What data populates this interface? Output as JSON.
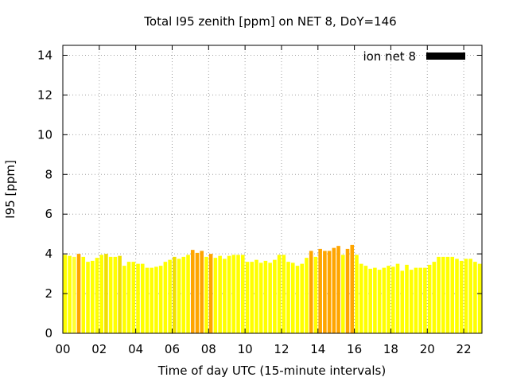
{
  "chart_data": {
    "type": "bar",
    "title": "Total I95 zenith [ppm] on NET 8, DoY=146",
    "xlabel": "Time of day UTC (15-minute intervals)",
    "ylabel": "I95 [ppm]",
    "xlim": [
      0,
      23
    ],
    "ylim": [
      0,
      14.5
    ],
    "grid": true,
    "legend_position": "top-right",
    "x_ticks": [
      {
        "value": 0,
        "label": "00"
      },
      {
        "value": 2,
        "label": "02"
      },
      {
        "value": 4,
        "label": "04"
      },
      {
        "value": 6,
        "label": "06"
      },
      {
        "value": 8,
        "label": "08"
      },
      {
        "value": 10,
        "label": "10"
      },
      {
        "value": 12,
        "label": "12"
      },
      {
        "value": 14,
        "label": "14"
      },
      {
        "value": 16,
        "label": "16"
      },
      {
        "value": 18,
        "label": "18"
      },
      {
        "value": 20,
        "label": "20"
      },
      {
        "value": 22,
        "label": "22"
      }
    ],
    "y_ticks": [
      {
        "value": 0,
        "label": "0"
      },
      {
        "value": 2,
        "label": "2"
      },
      {
        "value": 4,
        "label": "4"
      },
      {
        "value": 6,
        "label": "6"
      },
      {
        "value": 8,
        "label": "8"
      },
      {
        "value": 10,
        "label": "10"
      },
      {
        "value": 12,
        "label": "12"
      },
      {
        "value": 14,
        "label": "14"
      }
    ],
    "series": [
      {
        "name": "ion net 8",
        "legend_color": "#000000",
        "bar_width_hours": 0.2,
        "colors": {
          "normal": "#ffff00",
          "low": "#ffff33",
          "elevated": "#ffa500",
          "mid": "#f0e000"
        },
        "points": [
          {
            "x": 0.125,
            "y": 3.95,
            "level": "normal"
          },
          {
            "x": 0.375,
            "y": 3.9,
            "level": "normal"
          },
          {
            "x": 0.625,
            "y": 3.85,
            "level": "low"
          },
          {
            "x": 0.875,
            "y": 4.0,
            "level": "elevated"
          },
          {
            "x": 1.125,
            "y": 3.85,
            "level": "normal"
          },
          {
            "x": 1.375,
            "y": 3.6,
            "level": "normal"
          },
          {
            "x": 1.625,
            "y": 3.65,
            "level": "normal"
          },
          {
            "x": 1.875,
            "y": 3.8,
            "level": "normal"
          },
          {
            "x": 2.125,
            "y": 3.95,
            "level": "normal"
          },
          {
            "x": 2.375,
            "y": 4.0,
            "level": "mid"
          },
          {
            "x": 2.625,
            "y": 3.85,
            "level": "normal"
          },
          {
            "x": 2.875,
            "y": 3.85,
            "level": "normal"
          },
          {
            "x": 3.125,
            "y": 3.9,
            "level": "mid"
          },
          {
            "x": 3.375,
            "y": 3.4,
            "level": "normal"
          },
          {
            "x": 3.625,
            "y": 3.6,
            "level": "normal"
          },
          {
            "x": 3.875,
            "y": 3.6,
            "level": "normal"
          },
          {
            "x": 4.125,
            "y": 3.5,
            "level": "normal"
          },
          {
            "x": 4.375,
            "y": 3.5,
            "level": "normal"
          },
          {
            "x": 4.625,
            "y": 3.3,
            "level": "normal"
          },
          {
            "x": 4.875,
            "y": 3.3,
            "level": "normal"
          },
          {
            "x": 5.125,
            "y": 3.35,
            "level": "normal"
          },
          {
            "x": 5.375,
            "y": 3.4,
            "level": "normal"
          },
          {
            "x": 5.625,
            "y": 3.6,
            "level": "normal"
          },
          {
            "x": 5.875,
            "y": 3.7,
            "level": "normal"
          },
          {
            "x": 6.125,
            "y": 3.85,
            "level": "mid"
          },
          {
            "x": 6.375,
            "y": 3.75,
            "level": "normal"
          },
          {
            "x": 6.625,
            "y": 3.85,
            "level": "normal"
          },
          {
            "x": 6.875,
            "y": 3.95,
            "level": "normal"
          },
          {
            "x": 7.125,
            "y": 4.2,
            "level": "elevated"
          },
          {
            "x": 7.375,
            "y": 4.05,
            "level": "elevated"
          },
          {
            "x": 7.625,
            "y": 4.15,
            "level": "elevated"
          },
          {
            "x": 7.875,
            "y": 3.85,
            "level": "normal"
          },
          {
            "x": 8.125,
            "y": 4.0,
            "level": "elevated"
          },
          {
            "x": 8.375,
            "y": 3.8,
            "level": "normal"
          },
          {
            "x": 8.625,
            "y": 3.9,
            "level": "normal"
          },
          {
            "x": 8.875,
            "y": 3.75,
            "level": "normal"
          },
          {
            "x": 9.125,
            "y": 3.9,
            "level": "normal"
          },
          {
            "x": 9.375,
            "y": 3.95,
            "level": "normal"
          },
          {
            "x": 9.625,
            "y": 3.95,
            "level": "normal"
          },
          {
            "x": 9.875,
            "y": 3.95,
            "level": "normal"
          },
          {
            "x": 10.125,
            "y": 3.6,
            "level": "normal"
          },
          {
            "x": 10.375,
            "y": 3.6,
            "level": "normal"
          },
          {
            "x": 10.625,
            "y": 3.7,
            "level": "normal"
          },
          {
            "x": 10.875,
            "y": 3.55,
            "level": "normal"
          },
          {
            "x": 11.125,
            "y": 3.65,
            "level": "normal"
          },
          {
            "x": 11.375,
            "y": 3.55,
            "level": "normal"
          },
          {
            "x": 11.625,
            "y": 3.7,
            "level": "normal"
          },
          {
            "x": 11.875,
            "y": 3.95,
            "level": "normal"
          },
          {
            "x": 12.125,
            "y": 3.95,
            "level": "normal"
          },
          {
            "x": 12.375,
            "y": 3.6,
            "level": "normal"
          },
          {
            "x": 12.625,
            "y": 3.55,
            "level": "normal"
          },
          {
            "x": 12.875,
            "y": 3.4,
            "level": "normal"
          },
          {
            "x": 13.125,
            "y": 3.5,
            "level": "normal"
          },
          {
            "x": 13.375,
            "y": 3.8,
            "level": "normal"
          },
          {
            "x": 13.625,
            "y": 4.15,
            "level": "elevated"
          },
          {
            "x": 13.875,
            "y": 3.85,
            "level": "normal"
          },
          {
            "x": 14.125,
            "y": 4.25,
            "level": "elevated"
          },
          {
            "x": 14.375,
            "y": 4.15,
            "level": "elevated"
          },
          {
            "x": 14.625,
            "y": 4.15,
            "level": "elevated"
          },
          {
            "x": 14.875,
            "y": 4.3,
            "level": "elevated"
          },
          {
            "x": 15.125,
            "y": 4.4,
            "level": "elevated"
          },
          {
            "x": 15.375,
            "y": 3.95,
            "level": "normal"
          },
          {
            "x": 15.625,
            "y": 4.25,
            "level": "elevated"
          },
          {
            "x": 15.875,
            "y": 4.45,
            "level": "elevated"
          },
          {
            "x": 16.125,
            "y": 3.95,
            "level": "normal"
          },
          {
            "x": 16.375,
            "y": 3.5,
            "level": "normal"
          },
          {
            "x": 16.625,
            "y": 3.4,
            "level": "normal"
          },
          {
            "x": 16.875,
            "y": 3.25,
            "level": "normal"
          },
          {
            "x": 17.125,
            "y": 3.3,
            "level": "normal"
          },
          {
            "x": 17.375,
            "y": 3.2,
            "level": "normal"
          },
          {
            "x": 17.625,
            "y": 3.3,
            "level": "normal"
          },
          {
            "x": 17.875,
            "y": 3.4,
            "level": "normal"
          },
          {
            "x": 18.125,
            "y": 3.35,
            "level": "normal"
          },
          {
            "x": 18.375,
            "y": 3.5,
            "level": "normal"
          },
          {
            "x": 18.625,
            "y": 3.15,
            "level": "normal"
          },
          {
            "x": 18.875,
            "y": 3.45,
            "level": "normal"
          },
          {
            "x": 19.125,
            "y": 3.2,
            "level": "normal"
          },
          {
            "x": 19.375,
            "y": 3.3,
            "level": "normal"
          },
          {
            "x": 19.625,
            "y": 3.3,
            "level": "normal"
          },
          {
            "x": 19.875,
            "y": 3.3,
            "level": "normal"
          },
          {
            "x": 20.125,
            "y": 3.45,
            "level": "normal"
          },
          {
            "x": 20.375,
            "y": 3.6,
            "level": "normal"
          },
          {
            "x": 20.625,
            "y": 3.85,
            "level": "normal"
          },
          {
            "x": 20.875,
            "y": 3.85,
            "level": "normal"
          },
          {
            "x": 21.125,
            "y": 3.85,
            "level": "normal"
          },
          {
            "x": 21.375,
            "y": 3.85,
            "level": "normal"
          },
          {
            "x": 21.625,
            "y": 3.75,
            "level": "normal"
          },
          {
            "x": 21.875,
            "y": 3.65,
            "level": "normal"
          },
          {
            "x": 22.125,
            "y": 3.75,
            "level": "normal"
          },
          {
            "x": 22.375,
            "y": 3.75,
            "level": "normal"
          },
          {
            "x": 22.625,
            "y": 3.6,
            "level": "normal"
          },
          {
            "x": 22.875,
            "y": 3.5,
            "level": "normal"
          }
        ]
      }
    ]
  }
}
